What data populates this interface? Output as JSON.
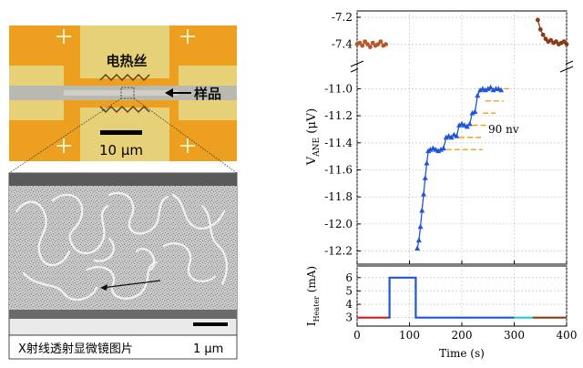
{
  "panel_a": {
    "heater_label": "电热丝",
    "sample_label": "样品",
    "scale_bar_label": "10 μm"
  },
  "panel_b": {
    "caption": "X射线透射显微镜图片",
    "scale_bar_label": "1 μm"
  },
  "chart_data": [
    {
      "type": "scatter",
      "ylabel_main": "V",
      "ylabel_sub": "ANE",
      "ylabel_unit": " (μV)",
      "xlim": [
        0,
        400
      ],
      "ylim": [
        -12.25,
        -10.95
      ],
      "ylim_top_segment": [
        -7.45,
        -7.18
      ],
      "yticks": [
        -12.2,
        -12.0,
        -11.8,
        -11.6,
        -11.4,
        -11.2,
        -11.0
      ],
      "yticks_top": [
        -7.4,
        -7.2
      ],
      "grid": true,
      "annotation": "90 nv",
      "colors": {
        "early": "#b8572a",
        "rise": "#1f55d6",
        "late": "#8a3a16",
        "guide": "#f0a020"
      },
      "series": [
        {
          "x": [
            0,
            5,
            10,
            15,
            20,
            25,
            30,
            35,
            40,
            45,
            50,
            55
          ],
          "y": [
            -7.4,
            -7.39,
            -7.41,
            -7.38,
            -7.4,
            -7.42,
            -7.39,
            -7.41,
            -7.4,
            -7.38,
            -7.41,
            -7.4
          ]
        },
        {
          "x": [
            115,
            118,
            121,
            124,
            127,
            130,
            133,
            136,
            140,
            145,
            150,
            155,
            160,
            165,
            170,
            175,
            180,
            185,
            190,
            195,
            200,
            205,
            210,
            215,
            220,
            225,
            230,
            235,
            240,
            245,
            250,
            255,
            260,
            265,
            270,
            275
          ],
          "y": [
            -12.18,
            -12.12,
            -12.02,
            -11.9,
            -11.78,
            -11.66,
            -11.55,
            -11.46,
            -11.45,
            -11.44,
            -11.45,
            -11.46,
            -11.45,
            -11.44,
            -11.36,
            -11.35,
            -11.36,
            -11.34,
            -11.35,
            -11.27,
            -11.26,
            -11.27,
            -11.28,
            -11.26,
            -11.18,
            -11.17,
            -11.05,
            -11.01,
            -11.0,
            -11.01,
            -11.0,
            -10.99,
            -11.01,
            -11.0,
            -11.0,
            -11.01
          ]
        },
        {
          "x": [
            345,
            350,
            355,
            360,
            365,
            370,
            375,
            380,
            385,
            390,
            395,
            400
          ],
          "y": [
            -7.22,
            -7.29,
            -7.33,
            -7.36,
            -7.38,
            -7.37,
            -7.39,
            -7.38,
            -7.4,
            -7.39,
            -7.38,
            -7.4
          ]
        }
      ]
    },
    {
      "type": "line",
      "xlabel": "Time (s)",
      "ylabel_main": "I",
      "ylabel_sub": "Heater",
      "ylabel_unit": " (mA)",
      "xlim": [
        0,
        400
      ],
      "ylim": [
        2.5,
        6.6
      ],
      "xticks": [
        0,
        100,
        200,
        300,
        400
      ],
      "yticks": [
        3,
        4,
        5,
        6
      ],
      "series": [
        {
          "color": "#cc1f1f",
          "x": [
            0,
            60
          ],
          "y": [
            3,
            3
          ]
        },
        {
          "color": "#1f55d6",
          "x": [
            60,
            62,
            62,
            112,
            112,
            300
          ],
          "y": [
            3,
            3,
            6,
            6,
            3,
            3
          ]
        },
        {
          "color": "#25c8d8",
          "x": [
            300,
            335
          ],
          "y": [
            3,
            3
          ]
        },
        {
          "color": "#8a3a16",
          "x": [
            335,
            400
          ],
          "y": [
            3,
            3
          ]
        }
      ]
    }
  ]
}
